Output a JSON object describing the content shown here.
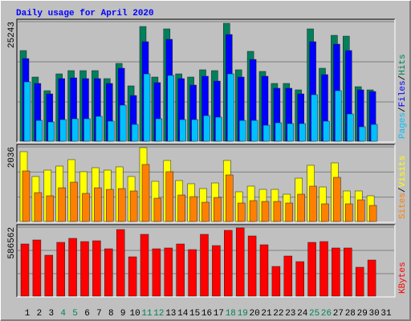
{
  "chart_data": {
    "type": "bar",
    "title": "Daily usage for April 2020",
    "title_color": "#0000ff",
    "categories": [
      "1",
      "2",
      "3",
      "4",
      "5",
      "6",
      "7",
      "8",
      "9",
      "10",
      "11",
      "12",
      "13",
      "14",
      "15",
      "16",
      "17",
      "18",
      "19",
      "20",
      "21",
      "22",
      "23",
      "24",
      "25",
      "26",
      "27",
      "28",
      "29",
      "30",
      "31"
    ],
    "category_colors": [
      "#000000",
      "#000000",
      "#000000",
      "#00805c",
      "#00805c",
      "#000000",
      "#000000",
      "#000000",
      "#000000",
      "#000000",
      "#00805c",
      "#00805c",
      "#000000",
      "#000000",
      "#000000",
      "#000000",
      "#000000",
      "#00805c",
      "#00805c",
      "#000000",
      "#000000",
      "#000000",
      "#000000",
      "#000000",
      "#00805c",
      "#00805c",
      "#000000",
      "#000000",
      "#000000",
      "#000000",
      "#000000"
    ],
    "legend_separator": "/",
    "panels": [
      {
        "ylim": [
          0,
          25243
        ],
        "yticks": [
          25243
        ],
        "series": [
          {
            "name": "Hits",
            "color": "#00805c",
            "values": [
              19185,
              13630,
              10770,
              14300,
              14980,
              14980,
              14980,
              13300,
              16490,
              11780,
              24230,
              13630,
              23730,
              14300,
              13630,
              15150,
              14980,
              24900,
              15150,
              19020,
              14810,
              12290,
              12290,
              10940,
              23730,
              15480,
              22380,
              22210,
              11610,
              10940,
              null
            ]
          },
          {
            "name": "Files",
            "color": "#0000ff",
            "values": [
              17500,
              12290,
              10100,
              13300,
              13460,
              13300,
              13300,
              12290,
              15480,
              9760,
              21040,
              12460,
              21540,
              13300,
              11950,
              13800,
              12790,
              22550,
              13630,
              17330,
              13800,
              11280,
              11280,
              10100,
              21040,
              14140,
              20530,
              19190,
              10940,
              10600,
              null
            ]
          },
          {
            "name": "Pages",
            "color": "#00c0ff",
            "values": [
              12620,
              4540,
              4210,
              4710,
              4880,
              4880,
              5390,
              4380,
              7740,
              3700,
              14300,
              4880,
              13970,
              4710,
              4710,
              5550,
              5220,
              14300,
              4540,
              4540,
              3530,
              4040,
              3870,
              3870,
              9930,
              4380,
              10770,
              5890,
              3200,
              3700,
              null
            ]
          }
        ]
      },
      {
        "ylim": [
          0,
          2036
        ],
        "yticks": [
          2036
        ],
        "series": [
          {
            "name": "Visits",
            "color": "#ffff00",
            "values": [
              1906,
              1235,
              1408,
              1516,
              1690,
              1365,
              1473,
              1408,
              1495,
              1235,
              2014,
              1105,
              1668,
              1126,
              1040,
              910,
              1061,
              1668,
              823,
              975,
              888,
              888,
              758,
              1191,
              1538,
              953,
              1603,
              845,
              845,
              715,
              null
            ]
          },
          {
            "name": "Sites",
            "color": "#ff8000",
            "values": [
              1386,
              801,
              715,
              931,
              1083,
              780,
              931,
              888,
              910,
              845,
              1560,
              650,
              1365,
              736,
              693,
              541,
              671,
              1278,
              520,
              585,
              563,
              563,
              520,
              758,
              975,
              498,
              1213,
              498,
              606,
              455,
              null
            ]
          }
        ]
      },
      {
        "ylim": [
          0,
          586562
        ],
        "yticks": [
          586562
        ],
        "series": [
          {
            "name": "KBytes",
            "color": "#ff0000",
            "values": [
              445000,
              478700,
              350600,
              458500,
              492200,
              465200,
              471900,
              404500,
              566300,
              337100,
              525900,
              404500,
              411300,
              445000,
              397800,
              525900,
              431500,
              559600,
              579800,
              512400,
              438200,
              256200,
              343800,
              296600,
              458500,
              465200,
              411300,
              411300,
              249500,
              310100,
              null
            ]
          }
        ]
      }
    ]
  }
}
